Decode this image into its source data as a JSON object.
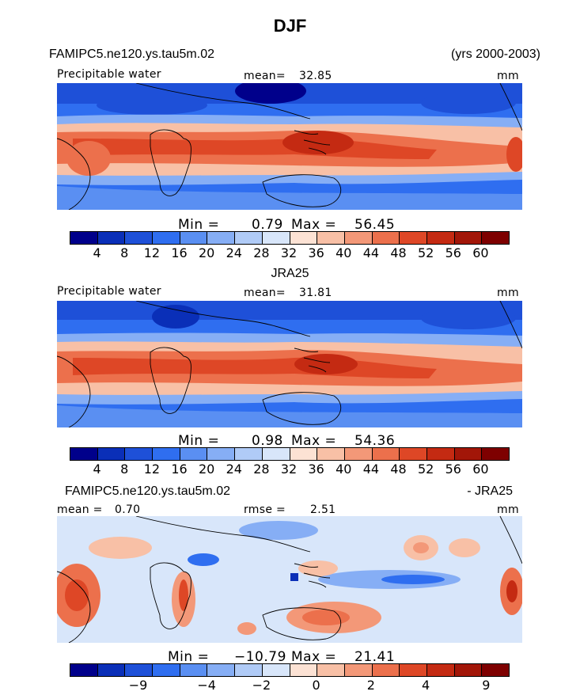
{
  "title": "DJF",
  "panel1": {
    "left_label": "FAMIPC5.ne120.ys.tau5m.02",
    "right_label": "(yrs 2000-2003)",
    "var_label": "Precipitable water",
    "mean_label": "mean=",
    "mean_value": "32.85",
    "units": "mm",
    "min_label": "Min =",
    "min_value": "0.79",
    "max_label": "Max =",
    "max_value": "56.45"
  },
  "panel2": {
    "center_label": "JRA25",
    "var_label": "Precipitable water",
    "mean_label": "mean=",
    "mean_value": "31.81",
    "units": "mm",
    "min_label": "Min =",
    "min_value": "0.98",
    "max_label": "Max =",
    "max_value": "54.36"
  },
  "panel3": {
    "left_label": "FAMIPC5.ne120.ys.tau5m.02",
    "right_label": "- JRA25",
    "mean_label": "mean =",
    "mean_value": "0.70",
    "rmse_label": "rmse =",
    "rmse_value": "2.51",
    "units": "mm",
    "min_label": "Min =",
    "min_value": "−10.79",
    "max_label": "Max =",
    "max_value": "21.41"
  },
  "colorbar_abs": {
    "ticks": [
      "4",
      "8",
      "12",
      "16",
      "20",
      "24",
      "28",
      "32",
      "36",
      "40",
      "44",
      "48",
      "52",
      "56",
      "60"
    ],
    "colors": [
      "#00008b",
      "#0a2fb8",
      "#1e50d8",
      "#2f6ef0",
      "#5a8ff2",
      "#86aef5",
      "#b0cbf7",
      "#d8e6fa",
      "#fce2d4",
      "#f8c0a6",
      "#f39878",
      "#ec704c",
      "#de4726",
      "#c42a12",
      "#a21608",
      "#7e0000"
    ]
  },
  "colorbar_diff": {
    "ticks": [
      "−9",
      "−4",
      "−2",
      "0",
      "2",
      "4",
      "9"
    ],
    "colors": [
      "#00008b",
      "#0a2fb8",
      "#1e50d8",
      "#2f6ef0",
      "#5a8ff2",
      "#86aef5",
      "#b0cbf7",
      "#d8e6fa",
      "#fce2d4",
      "#f8c0a6",
      "#f39878",
      "#ec704c",
      "#de4726",
      "#c42a12",
      "#a21608",
      "#7e0000"
    ]
  }
}
